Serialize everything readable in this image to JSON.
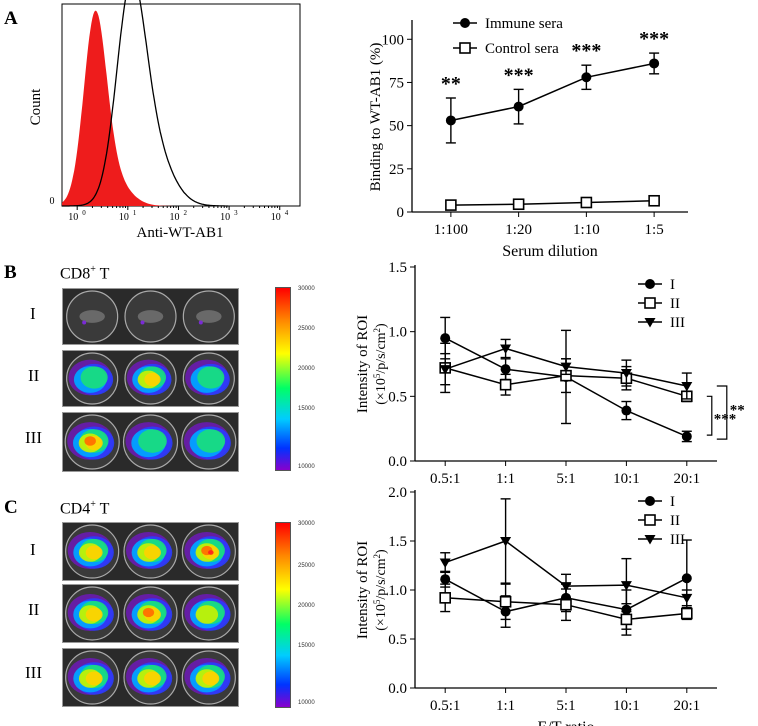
{
  "panels": {
    "a": "A",
    "b": "B",
    "c": "C"
  },
  "flow": {
    "ylabel": "Count",
    "xlabel": "Anti-WT-AB1",
    "y_zero": "0",
    "x_ticks": [
      "10",
      "10",
      "10",
      "10",
      "10"
    ],
    "x_exps": [
      "0",
      "1",
      "2",
      "3",
      "4"
    ],
    "filled_color": "#ee1c1c",
    "outline_color": "#000000"
  },
  "chart_data": [
    {
      "id": "binding",
      "type": "line",
      "title": "",
      "xlabel": "Serum dilution",
      "ylabel": "Binding to WT-AB1 (%)",
      "categories": [
        "1:100",
        "1:20",
        "1:10",
        "1:5"
      ],
      "ylim": [
        0,
        110
      ],
      "yticks": [
        0,
        25,
        50,
        75,
        100
      ],
      "series": [
        {
          "name": "Immune sera",
          "marker": "circle",
          "values": [
            53,
            61,
            78,
            86
          ],
          "err": [
            13,
            10,
            7,
            6
          ]
        },
        {
          "name": "Control sera",
          "marker": "square",
          "values": [
            4,
            4.5,
            5.5,
            6.5
          ],
          "err": [
            0,
            0,
            0,
            0
          ]
        }
      ],
      "annotations": [
        "**",
        "***",
        "***",
        "***"
      ],
      "legend": "top-left"
    },
    {
      "id": "cd8",
      "type": "line",
      "title": "",
      "xlabel": "",
      "ylabel": "Intensity of ROI",
      "ylabel2": "(×10",
      "ylabel2_sup": "5",
      "ylabel2_tail": "/p/s/cm",
      "ylabel2_sup2": "2",
      "ylabel2_end": ")",
      "categories": [
        "0.5:1",
        "1:1",
        "5:1",
        "10:1",
        "20:1"
      ],
      "ylim": [
        0,
        1.5
      ],
      "yticks": [
        "0.0",
        "0.5",
        "1.0",
        "1.5"
      ],
      "series": [
        {
          "name": "I",
          "marker": "circle",
          "values": [
            0.95,
            0.71,
            0.65,
            0.39,
            0.19
          ],
          "err": [
            0.16,
            0.08,
            0.36,
            0.07,
            0.04
          ]
        },
        {
          "name": "II",
          "marker": "square",
          "values": [
            0.72,
            0.59,
            0.66,
            0.64,
            0.5
          ],
          "err": [
            0.19,
            0.08,
            0.13,
            0.09,
            0.04
          ]
        },
        {
          "name": "III",
          "marker": "triangle",
          "values": [
            0.71,
            0.87,
            0.73,
            0.68,
            0.58
          ],
          "err": [
            0.12,
            0.07,
            0.06,
            0.1,
            0.1
          ]
        }
      ],
      "significance": [
        "***",
        "**"
      ],
      "legend": "top-right"
    },
    {
      "id": "cd4",
      "type": "line",
      "title": "",
      "xlabel": "E/T ratio",
      "ylabel": "Intensity of ROI",
      "ylabel2": "(×10",
      "ylabel2_sup": "5",
      "ylabel2_tail": "/p/s/cm",
      "ylabel2_sup2": "2",
      "ylabel2_end": ")",
      "categories": [
        "0.5:1",
        "1:1",
        "5:1",
        "10:1",
        "20:1"
      ],
      "ylim": [
        0,
        2.0
      ],
      "yticks": [
        "0.0",
        "0.5",
        "1.0",
        "1.5",
        "2.0"
      ],
      "series": [
        {
          "name": "I",
          "marker": "circle",
          "values": [
            1.11,
            0.78,
            0.92,
            0.8,
            1.12
          ],
          "err": [
            0.08,
            0.16,
            0.14,
            0.2,
            0.39
          ]
        },
        {
          "name": "II",
          "marker": "square",
          "values": [
            0.92,
            0.88,
            0.85,
            0.7,
            0.76
          ],
          "err": [
            0.14,
            0.18,
            0.16,
            0.16,
            0.06
          ]
        },
        {
          "name": "III",
          "marker": "triangle",
          "values": [
            1.28,
            1.5,
            1.04,
            1.05,
            0.92
          ],
          "err": [
            0.1,
            0.43,
            0.12,
            0.27,
            0.08
          ]
        }
      ],
      "legend": "top-right"
    }
  ],
  "imaging": {
    "cd8_title": "CD8",
    "cd8_sup": "+",
    "cd8_t": " T",
    "cd4_title": "CD4",
    "cd4_sup": "+",
    "cd4_t": " T",
    "row_labels": [
      "I",
      "II",
      "III"
    ],
    "colorbar_labels": [
      "30000",
      "25000",
      "20000",
      "15000",
      "10000"
    ]
  }
}
